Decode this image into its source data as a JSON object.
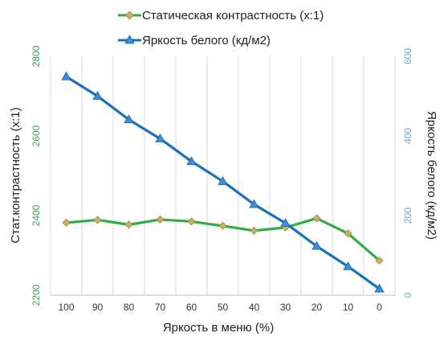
{
  "chart_data": {
    "type": "line",
    "xlabel": "Яркость в меню (%)",
    "ylabel_left": "Стат.контрастность  (х:1)",
    "ylabel_right": "Яркость белого (кд/м2)",
    "categories": [
      "100",
      "90",
      "80",
      "70",
      "60",
      "50",
      "40",
      "30",
      "20",
      "10",
      "0"
    ],
    "y_left": {
      "min": 2200,
      "max": 2800,
      "ticks": [
        "2200",
        "2400",
        "2600",
        "2800"
      ]
    },
    "y_right": {
      "min": 0,
      "max": 600,
      "ticks": [
        "0",
        "200",
        "400",
        "600"
      ]
    },
    "grid": "vertical",
    "legend_position": "top",
    "series": [
      {
        "name": "Статическая контрастность (х:1)",
        "axis": "left",
        "color": "#2fae45",
        "marker_color": "#c9b25a",
        "marker": "diamond",
        "values": [
          2382,
          2389,
          2377,
          2390,
          2385,
          2374,
          2362,
          2370,
          2393,
          2355,
          2287
        ]
      },
      {
        "name": "Яркость белого (кд/м2)",
        "axis": "right",
        "color": "#1a6fc2",
        "marker_color": "#3a8fd8",
        "marker": "triangle",
        "values": [
          549,
          500,
          441,
          393,
          336,
          286,
          228,
          181,
          123,
          72,
          16
        ]
      }
    ]
  }
}
